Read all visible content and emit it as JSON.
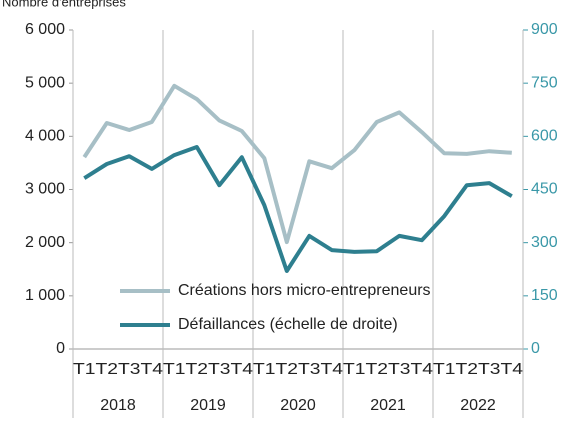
{
  "chart_data": {
    "type": "line",
    "title": "Nombre d'entreprises",
    "categories": [
      "T1",
      "T2",
      "T3",
      "T4",
      "T1",
      "T2",
      "T3",
      "T4",
      "T1",
      "T2",
      "T3",
      "T4",
      "T1",
      "T2",
      "T3",
      "T4",
      "T1",
      "T2",
      "T3",
      "T4"
    ],
    "years": [
      "2018",
      "2019",
      "2020",
      "2021",
      "2022"
    ],
    "series": [
      {
        "name": "Créations hors micro-entrepreneurs",
        "color": "#a7bfc6",
        "values": [
          3610,
          4250,
          4120,
          4270,
          4950,
          4700,
          4300,
          4100,
          3590,
          2010,
          3530,
          3400,
          3740,
          4270,
          4450,
          4080,
          3680,
          3670,
          3720,
          3690
        ]
      },
      {
        "name": "Défaillances (échelle  de droite)",
        "color": "#2e7f8f",
        "axis": "y2",
        "values": [
          482,
          522,
          544,
          508,
          547,
          570,
          462,
          541,
          406,
          220,
          319,
          279,
          274,
          276,
          319,
          307,
          375,
          462,
          468,
          431
        ]
      }
    ],
    "ylim": [
      0,
      6000
    ],
    "yticks": [
      0,
      {
        "value": 1000,
        "label": "1 000"
      },
      {
        "value": 2000,
        "label": "2 000"
      },
      {
        "value": 3000,
        "label": "3 000"
      },
      {
        "value": 4000,
        "label": "4 000"
      },
      {
        "value": 5000,
        "label": "5 000"
      },
      {
        "value": 6000,
        "label": "6 000"
      }
    ],
    "y2lim": [
      0,
      900
    ],
    "y2ticks": [
      0,
      150,
      300,
      450,
      600,
      750,
      900
    ]
  }
}
